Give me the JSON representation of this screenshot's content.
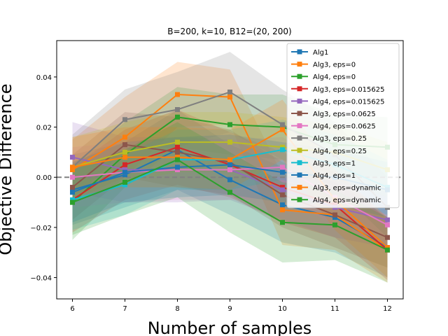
{
  "chart_data": {
    "type": "line",
    "title": "B=200, k=10, B12=(20, 200)",
    "xlabel": "Number of samples",
    "ylabel": "Objective Difference",
    "x": [
      6,
      7,
      8,
      9,
      10,
      11,
      12
    ],
    "xlim": [
      5.7,
      12.3
    ],
    "ylim": [
      -0.0485,
      0.0545
    ],
    "yticks": [
      -0.04,
      -0.02,
      0.0,
      0.02,
      0.04
    ],
    "ytick_labels": [
      "−0.04",
      "−0.02",
      "0.00",
      "0.02",
      "0.04"
    ],
    "xtick_labels": [
      "6",
      "7",
      "8",
      "9",
      "10",
      "11",
      "12"
    ],
    "reference_line": {
      "y": 0.0,
      "style": "dashed",
      "color": "#808080"
    },
    "legend_position": "top-right",
    "grid": false,
    "series": [
      {
        "name": "Alg1",
        "color": "#1f77b4",
        "values": [
          -0.005,
          0.001,
          0.011,
          -0.001,
          -0.011,
          -0.016,
          -0.028
        ],
        "band": [
          0.014,
          0.013,
          0.016,
          0.014,
          0.015,
          0.014,
          0.012
        ]
      },
      {
        "name": "Alg3, eps=0",
        "color": "#ff7f0e",
        "values": [
          0.003,
          0.016,
          0.033,
          0.032,
          -0.013,
          -0.015,
          -0.029
        ],
        "band": [
          0.012,
          0.016,
          0.013,
          0.011,
          0.014,
          0.014,
          0.013
        ]
      },
      {
        "name": "Alg4, eps=0",
        "color": "#2ca02c",
        "values": [
          -0.01,
          0.009,
          0.024,
          0.021,
          0.02,
          0.013,
          0.012
        ],
        "band": [
          0.015,
          0.013,
          0.012,
          0.012,
          0.013,
          0.012,
          0.012
        ]
      },
      {
        "name": "Alg3, eps=0.015625",
        "color": "#d62728",
        "values": [
          -0.009,
          0.005,
          0.012,
          0.005,
          -0.004,
          -0.011,
          -0.029
        ],
        "band": [
          0.013,
          0.014,
          0.015,
          0.013,
          0.014,
          0.013,
          0.012
        ]
      },
      {
        "name": "Alg4, eps=0.015625",
        "color": "#9467bd",
        "values": [
          0.008,
          0.003,
          0.003,
          0.003,
          -0.005,
          -0.012,
          -0.017
        ],
        "band": [
          0.014,
          0.013,
          0.013,
          0.012,
          0.012,
          0.012,
          0.011
        ]
      },
      {
        "name": "Alg3, eps=0.0625",
        "color": "#8c564b",
        "values": [
          -0.004,
          0.013,
          0.01,
          0.006,
          -0.007,
          -0.015,
          -0.024
        ],
        "band": [
          0.013,
          0.013,
          0.014,
          0.013,
          0.013,
          0.013,
          0.012
        ]
      },
      {
        "name": "Alg4, eps=0.0625",
        "color": "#e377c2",
        "values": [
          0.0,
          0.002,
          0.003,
          0.003,
          0.004,
          -0.008,
          -0.019
        ],
        "band": [
          0.012,
          0.012,
          0.012,
          0.012,
          0.012,
          0.011,
          0.011
        ]
      },
      {
        "name": "Alg3, eps=0.25",
        "color": "#7f7f7f",
        "values": [
          0.004,
          0.023,
          0.027,
          0.034,
          0.021,
          0.009,
          -0.012
        ],
        "band": [
          0.013,
          0.012,
          0.015,
          0.016,
          0.014,
          0.013,
          0.012
        ]
      },
      {
        "name": "Alg4, eps=0.25",
        "color": "#bcbd22",
        "values": [
          0.004,
          0.01,
          0.014,
          0.014,
          0.012,
          0.01,
          0.003
        ],
        "band": [
          0.012,
          0.012,
          0.012,
          0.012,
          0.012,
          0.011,
          0.011
        ]
      },
      {
        "name": "Alg3, eps=1",
        "color": "#17becf",
        "values": [
          -0.009,
          -0.003,
          0.007,
          0.007,
          0.011,
          0.005,
          -0.004
        ],
        "band": [
          0.012,
          0.012,
          0.012,
          0.012,
          0.012,
          0.012,
          0.011
        ]
      },
      {
        "name": "Alg4, eps=1",
        "color": "#1f77b4",
        "values": [
          -0.006,
          0.002,
          0.004,
          0.005,
          0.002,
          0.0,
          -0.005
        ],
        "band": [
          0.012,
          0.012,
          0.012,
          0.012,
          0.012,
          0.011,
          0.011
        ]
      },
      {
        "name": "Alg3, eps=dynamic",
        "color": "#ff7f0e",
        "values": [
          0.004,
          0.008,
          0.008,
          0.007,
          0.019,
          -0.009,
          -0.028
        ],
        "band": [
          0.012,
          0.012,
          0.012,
          0.012,
          0.012,
          0.012,
          0.012
        ]
      },
      {
        "name": "Alg4, eps=dynamic",
        "color": "#2ca02c",
        "values": [
          -0.01,
          -0.002,
          0.007,
          -0.006,
          -0.018,
          -0.019,
          -0.029
        ],
        "band": [
          0.013,
          0.013,
          0.015,
          0.016,
          0.016,
          0.014,
          0.013
        ]
      }
    ]
  }
}
